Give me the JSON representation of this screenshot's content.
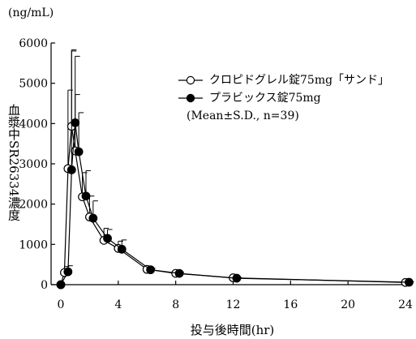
{
  "chart_data": {
    "type": "line",
    "unit_label": "(ng/mL)",
    "ylabel": "血漿中SR26334濃度",
    "xlabel": "投与後時間(hr)",
    "xlim": [
      0,
      24
    ],
    "ylim": [
      0,
      6000
    ],
    "x_ticks": [
      0,
      4,
      8,
      12,
      16,
      20,
      24
    ],
    "y_ticks": [
      0,
      1000,
      2000,
      3000,
      4000,
      5000,
      6000
    ],
    "legend_note": "(Mean±S.D., n=39)",
    "series": [
      {
        "name": "クロピドグレル錠75mg「サンド」",
        "marker": "open-circle",
        "points": [
          {
            "x": 0,
            "y": 0,
            "sd": 0
          },
          {
            "x": 0.25,
            "y": 300,
            "sd": 150
          },
          {
            "x": 0.5,
            "y": 2880,
            "sd": 1950
          },
          {
            "x": 0.75,
            "y": 3930,
            "sd": 1900
          },
          {
            "x": 1,
            "y": 3320,
            "sd": 1400
          },
          {
            "x": 1.5,
            "y": 2180,
            "sd": 600
          },
          {
            "x": 2,
            "y": 1680,
            "sd": 520
          },
          {
            "x": 3,
            "y": 1100,
            "sd": 300
          },
          {
            "x": 4,
            "y": 900,
            "sd": 180
          },
          {
            "x": 6,
            "y": 380,
            "sd": 40
          },
          {
            "x": 8,
            "y": 280,
            "sd": 30
          },
          {
            "x": 12,
            "y": 170,
            "sd": 20
          },
          {
            "x": 24,
            "y": 55,
            "sd": 10
          }
        ]
      },
      {
        "name": "プラビックス錠75mg",
        "marker": "filled-circle",
        "points": [
          {
            "x": 0,
            "y": 0,
            "sd": 0
          },
          {
            "x": 0.5,
            "y": 320,
            "sd": 150
          },
          {
            "x": 0.75,
            "y": 2850,
            "sd": 2950
          },
          {
            "x": 1,
            "y": 4020,
            "sd": 1650
          },
          {
            "x": 1.25,
            "y": 3300,
            "sd": 970
          },
          {
            "x": 1.75,
            "y": 2200,
            "sd": 630
          },
          {
            "x": 2.25,
            "y": 1650,
            "sd": 430
          },
          {
            "x": 3.25,
            "y": 1150,
            "sd": 220
          },
          {
            "x": 4.25,
            "y": 880,
            "sd": 230
          },
          {
            "x": 6.25,
            "y": 370,
            "sd": 35
          },
          {
            "x": 8.25,
            "y": 280,
            "sd": 30
          },
          {
            "x": 12.25,
            "y": 160,
            "sd": 20
          },
          {
            "x": 24.25,
            "y": 60,
            "sd": 10
          }
        ]
      }
    ]
  }
}
